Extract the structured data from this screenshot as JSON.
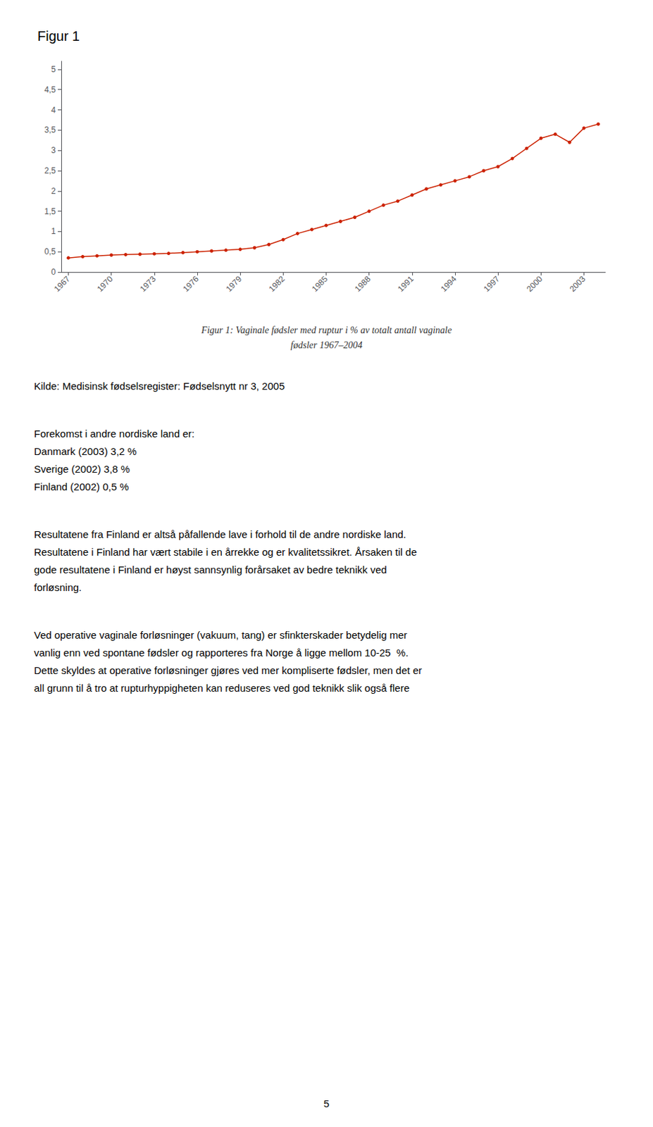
{
  "chart_data": {
    "type": "line",
    "title": "Figur 1",
    "x": [
      1967,
      1968,
      1969,
      1970,
      1971,
      1972,
      1973,
      1974,
      1975,
      1976,
      1977,
      1978,
      1979,
      1980,
      1981,
      1982,
      1983,
      1984,
      1985,
      1986,
      1987,
      1988,
      1989,
      1990,
      1991,
      1992,
      1993,
      1994,
      1995,
      1996,
      1997,
      1998,
      1999,
      2000,
      2001,
      2002,
      2003,
      2004
    ],
    "values": [
      0.35,
      0.38,
      0.4,
      0.42,
      0.43,
      0.44,
      0.45,
      0.46,
      0.48,
      0.5,
      0.52,
      0.54,
      0.56,
      0.6,
      0.68,
      0.8,
      0.95,
      1.05,
      1.15,
      1.25,
      1.35,
      1.5,
      1.65,
      1.75,
      1.9,
      2.05,
      2.15,
      2.25,
      2.35,
      2.5,
      2.6,
      2.8,
      3.05,
      3.3,
      3.4,
      3.2,
      3.55,
      3.65
    ],
    "color": "#cc2200",
    "marker": "circle",
    "xlim": [
      1966.5,
      2004.5
    ],
    "xticks": [
      1967,
      1970,
      1973,
      1976,
      1979,
      1982,
      1985,
      1988,
      1991,
      1994,
      1997,
      2000,
      2003
    ],
    "ylim": [
      0,
      5.2
    ],
    "yticks": [
      0,
      {
        "value": 0.5,
        "label": "0,5"
      },
      1,
      {
        "value": 1.5,
        "label": "1,5"
      },
      2,
      {
        "value": 2.5,
        "label": "2,5"
      },
      3,
      {
        "value": 3.5,
        "label": "3,5"
      },
      4,
      {
        "value": 4.5,
        "label": "4,5"
      },
      5
    ],
    "grid": false,
    "annotations": [
      [
        "Figur 1: Vaginale fødsler med ruptur i % av totalt antall vaginale",
        "fødsler 1967–2004"
      ],
      [
        "Kilde: Medisinsk fødselsregister: Fødselsnytt nr 3, 2005"
      ],
      [
        "Forekomst i andre nordiske land er:",
        "Danmark (2003) 3,2 %",
        "Sverige (2002) 3,8 %",
        "Finland (2002) 0,5 %"
      ],
      [
        "Resultatene fra Finland er altså påfallende lave i forhold til de andre nordiske land.",
        "Resultatene i Finland har vært stabile i en årrekke og er kvalitetssikret. Årsaken til de",
        "gode resultatene i Finland er høyst sannsynlig forårsaket av bedre teknikk ved",
        "forløsning."
      ],
      [
        "Ved operative vaginale forløsninger (vakuum, tang) er sfinkterskader betydelig mer",
        "vanlig enn ved spontane fødsler og rapporteres fra Norge å ligge mellom 10-25  %.",
        "Dette skyldes at operative forløsninger gjøres ved mer kompliserte fødsler, men det er",
        "all grunn til å tro at rupturhyppigheten kan reduseres ved god teknikk slik også flere"
      ],
      [
        "5"
      ]
    ]
  }
}
